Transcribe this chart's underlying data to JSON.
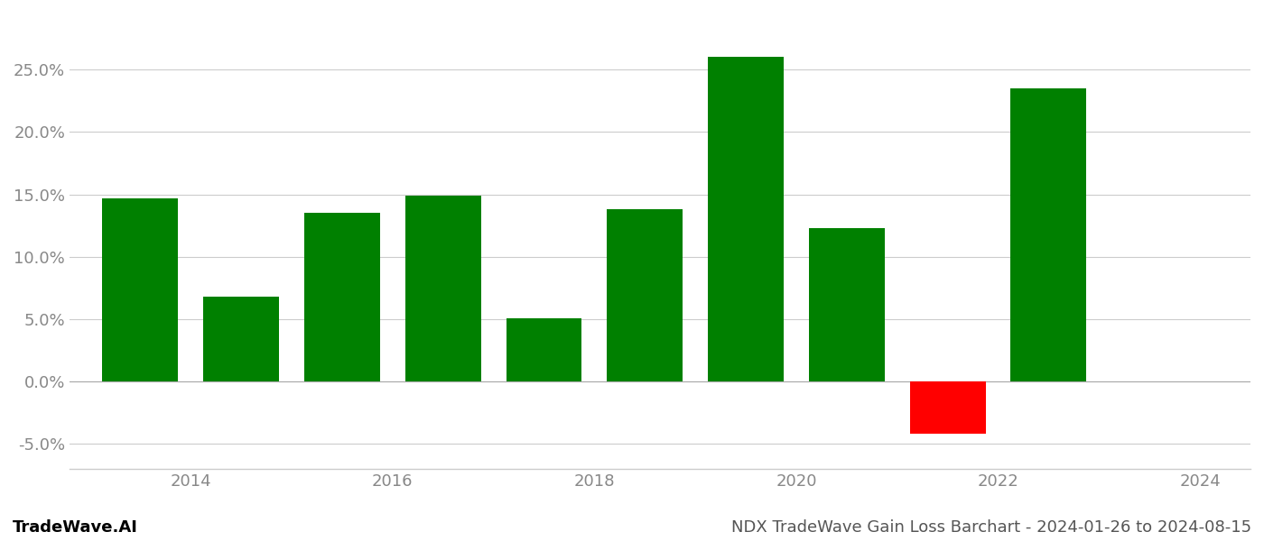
{
  "years": [
    2013,
    2014,
    2015,
    2016,
    2017,
    2018,
    2019,
    2020,
    2021,
    2022
  ],
  "values": [
    0.147,
    0.068,
    0.135,
    0.149,
    0.051,
    0.138,
    0.26,
    0.123,
    -0.042,
    0.235
  ],
  "colors": [
    "#008000",
    "#008000",
    "#008000",
    "#008000",
    "#008000",
    "#008000",
    "#008000",
    "#008000",
    "#ff0000",
    "#008000"
  ],
  "ylim": [
    -0.07,
    0.295
  ],
  "yticks": [
    -0.05,
    0.0,
    0.05,
    0.1,
    0.15,
    0.2,
    0.25
  ],
  "xticks": [
    2013.5,
    2015.5,
    2017.5,
    2019.5,
    2021.5,
    2023.5
  ],
  "xticklabels": [
    "2014",
    "2016",
    "2018",
    "2020",
    "2022",
    "2024"
  ],
  "xlim": [
    2012.3,
    2024.0
  ],
  "footer_left": "TradeWave.AI",
  "footer_right": "NDX TradeWave Gain Loss Barchart - 2024-01-26 to 2024-08-15",
  "bar_width": 0.75,
  "background_color": "#ffffff",
  "grid_color": "#cccccc",
  "tick_color": "#888888",
  "footer_fontsize": 13,
  "axis_fontsize": 13
}
